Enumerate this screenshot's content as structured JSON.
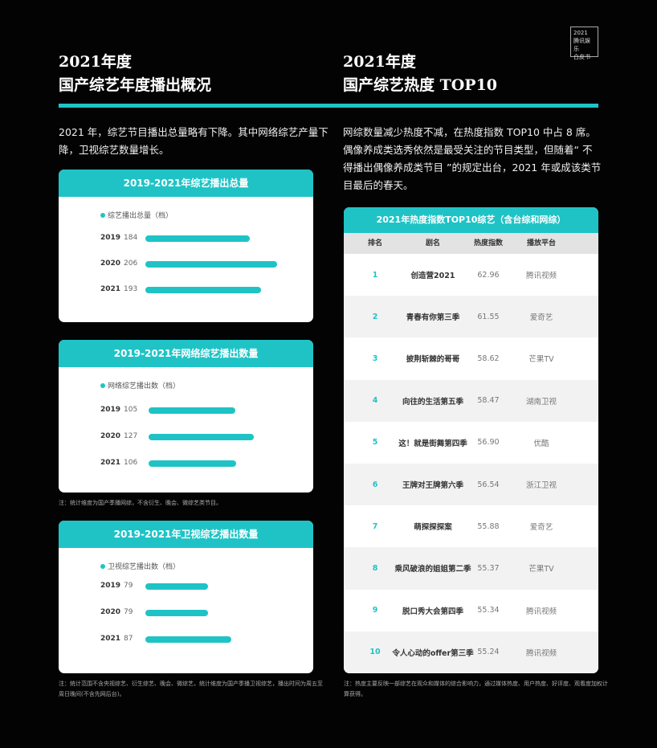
{
  "badge": {
    "line1": "2021",
    "line2": "腾讯娱乐",
    "line3": "白皮书"
  },
  "left": {
    "title1": "2021年度",
    "title2": "国产综艺年度播出概况",
    "intro": "2021 年，综艺节目播出总量略有下降。其中网络综艺产量下降，卫视综艺数量增长。",
    "charts": [
      {
        "title": "2019-2021年综艺播出总量",
        "legend": "综艺播出总量（档）",
        "rows": [
          {
            "year": "2019",
            "value": 184
          },
          {
            "year": "2020",
            "value": 206
          },
          {
            "year": "2021",
            "value": 193
          }
        ]
      },
      {
        "title": "2019-2021年网络综艺播出数量",
        "legend": "网络综艺播出数（档）",
        "rows": [
          {
            "year": "2019",
            "value": 105
          },
          {
            "year": "2020",
            "value": 127
          },
          {
            "year": "2021",
            "value": 106
          }
        ],
        "note": "注：统计维度为国产季播网综，不含衍生、晚会、微综艺类节目。"
      },
      {
        "title": "2019-2021年卫视综艺播出数量",
        "legend": "卫视综艺播出数（档）",
        "rows": [
          {
            "year": "2019",
            "value": 79
          },
          {
            "year": "2020",
            "value": 79
          },
          {
            "year": "2021",
            "value": 87
          }
        ],
        "note": "注：统计范围不含央视综艺、衍生综艺、晚会、微综艺，统计维度为国产季播卫视综艺，播出时间为周五至周日晚间(不含先网后台)。"
      }
    ]
  },
  "right": {
    "title1": "2021年度",
    "title2": "国产综艺热度 TOP10",
    "intro": "网综数量减少热度不减，在热度指数 TOP10 中占 8 席。偶像养成类选秀依然是最受关注的节目类型，但随着“ 不得播出偶像养成类节目 ”的规定出台，2021 年或成该类节目最后的春天。",
    "table": {
      "title": "2021年热度指数TOP10综艺（含台综和网综）",
      "columns": [
        "排名",
        "剧名",
        "热度指数",
        "播放平台"
      ],
      "rows": [
        [
          "1",
          "创造营2021",
          "62.96",
          "腾讯视频"
        ],
        [
          "2",
          "青春有你第三季",
          "61.55",
          "爱奇艺"
        ],
        [
          "3",
          "披荆斩棘的哥哥",
          "58.62",
          "芒果TV"
        ],
        [
          "4",
          "向往的生活第五季",
          "58.47",
          "湖南卫视"
        ],
        [
          "5",
          "这！就是街舞第四季",
          "56.90",
          "优酷"
        ],
        [
          "6",
          "王牌对王牌第六季",
          "56.54",
          "浙江卫视"
        ],
        [
          "7",
          "萌探探探案",
          "55.88",
          "爱奇艺"
        ],
        [
          "8",
          "乘风破浪的姐姐第二季",
          "55.37",
          "芒果TV"
        ],
        [
          "9",
          "脱口秀大会第四季",
          "55.34",
          "腾讯视频"
        ],
        [
          "10",
          "令人心动的offer第三季",
          "55.24",
          "腾讯视频"
        ]
      ]
    },
    "note": "注：热度主要反映一部综艺在观众和媒体的综合影响力，通过媒体热度、用户热度、好评度、观看度加权计算获得。"
  },
  "colors": {
    "accent": "#1fc3c6",
    "background": "#030303"
  }
}
